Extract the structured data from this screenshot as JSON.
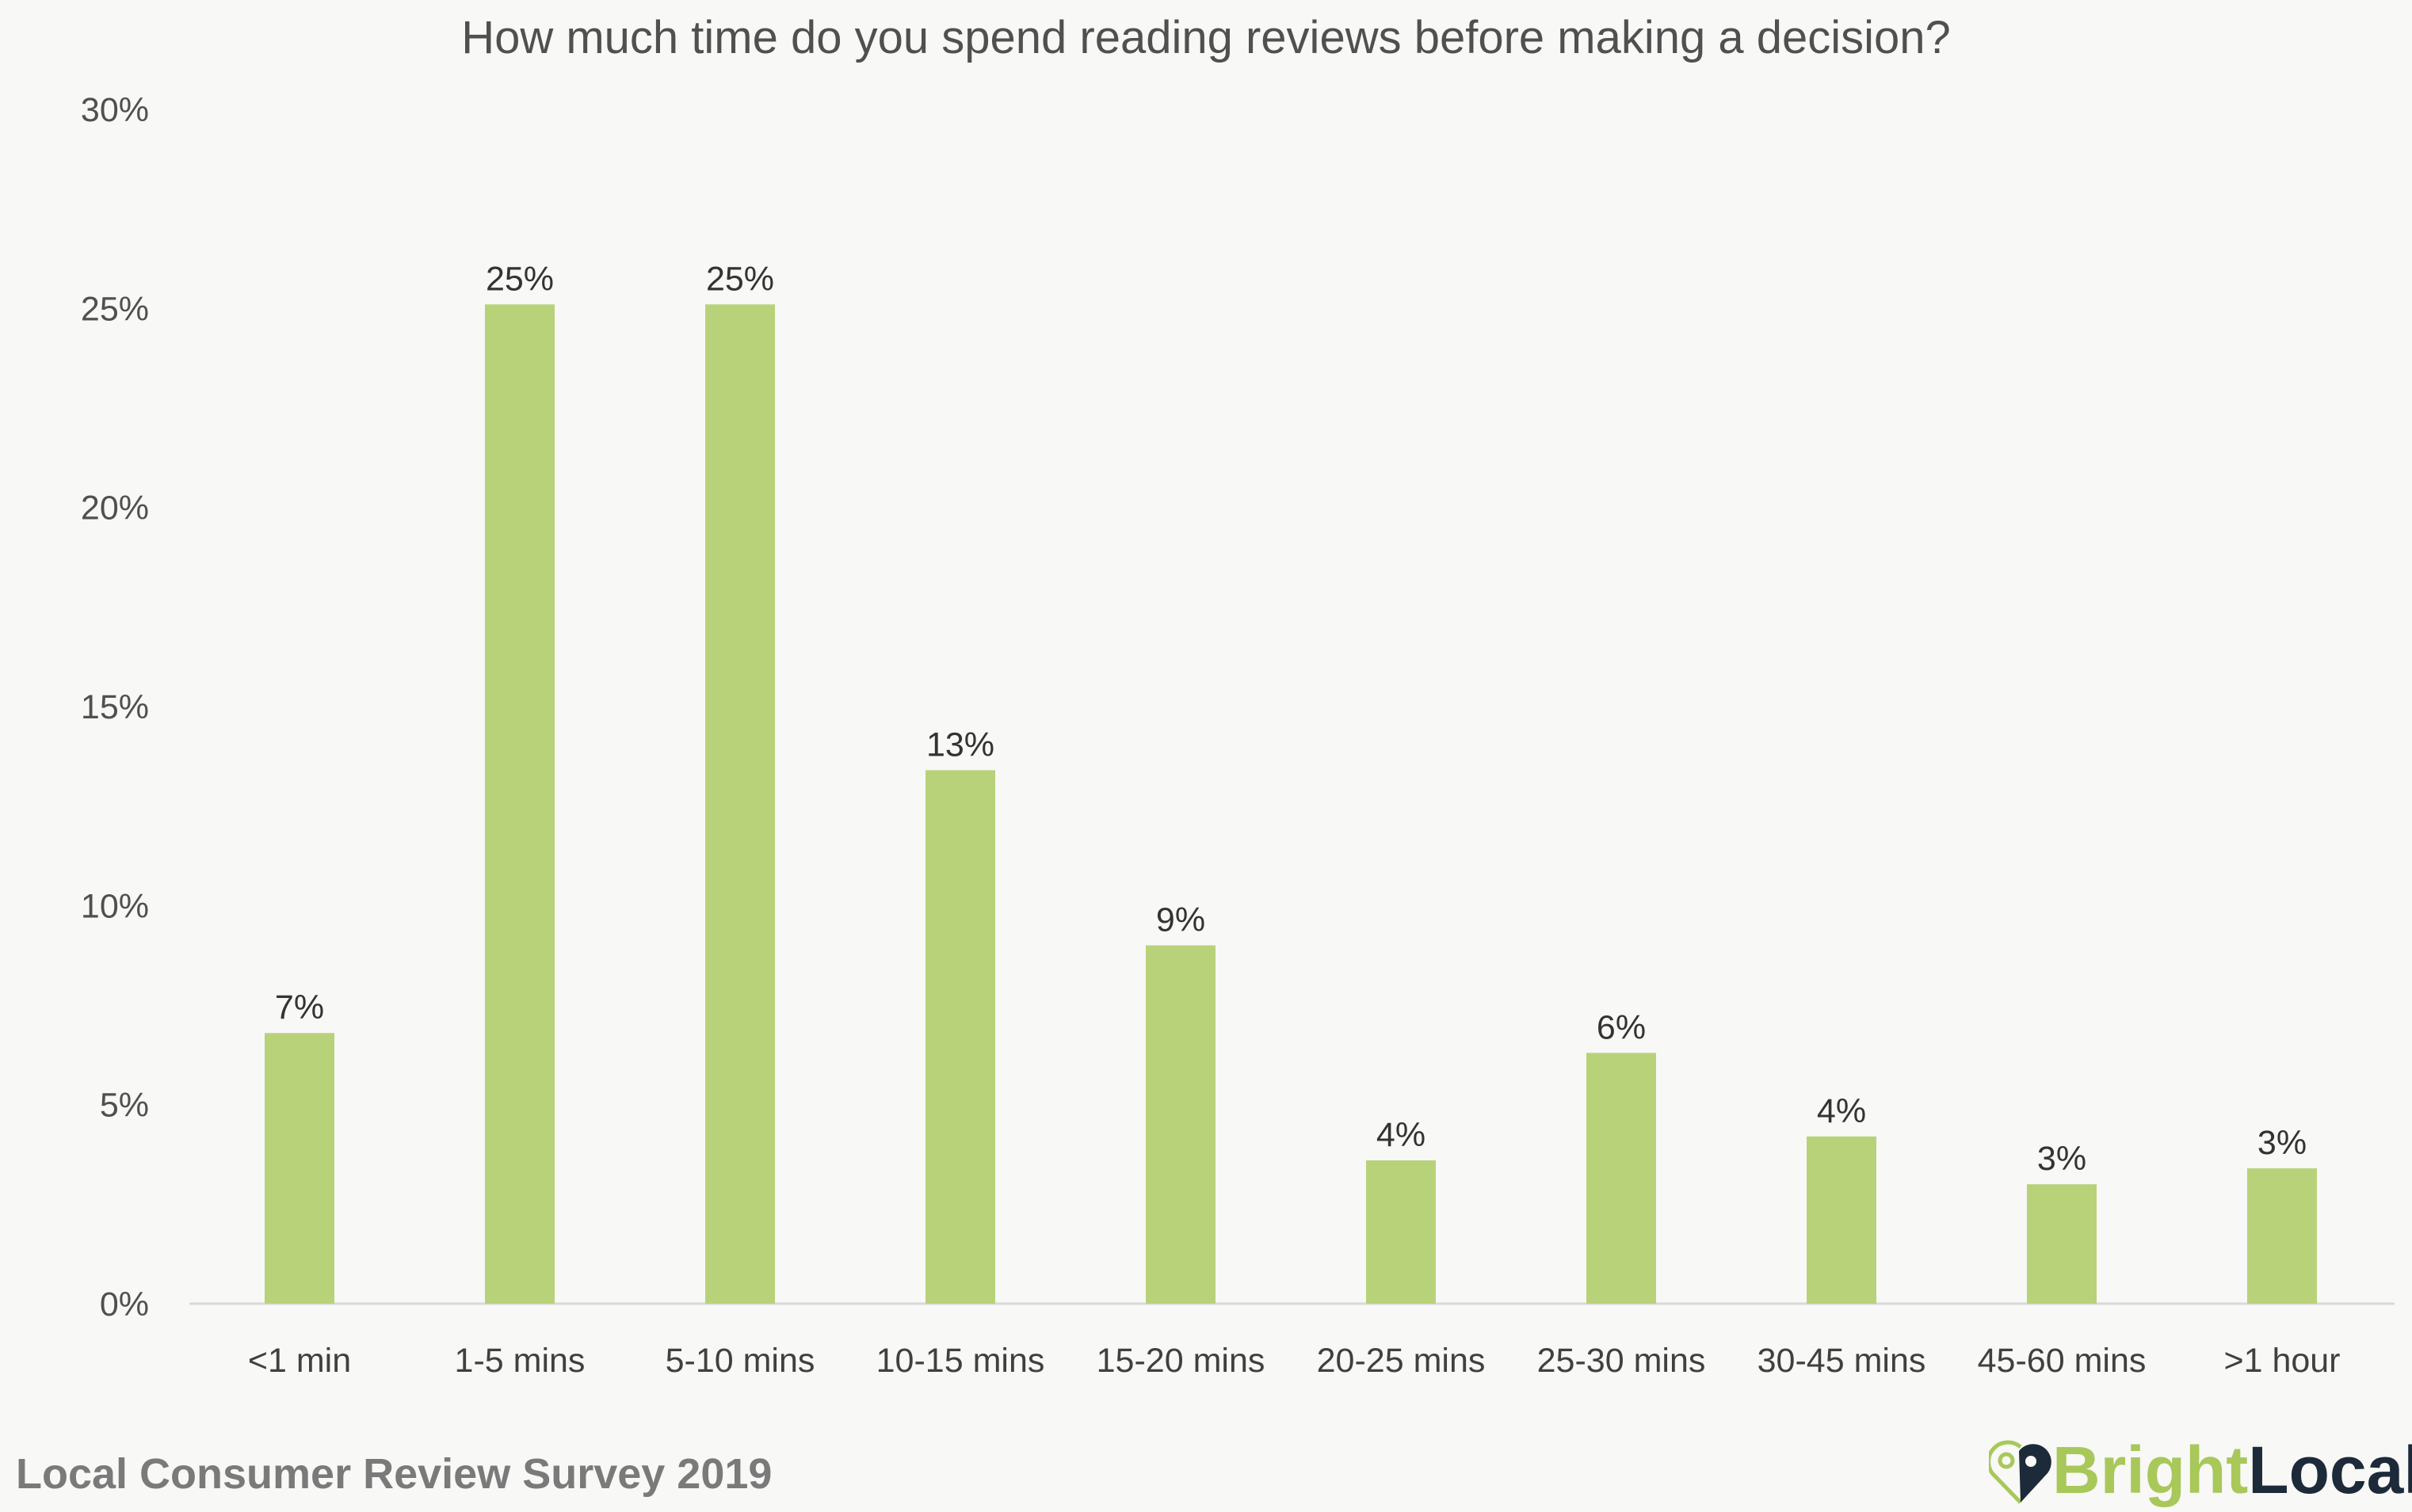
{
  "chart_data": {
    "type": "bar",
    "title": "How much time do you spend reading reviews before making a decision?",
    "categories": [
      "<1 min",
      "1-5 mins",
      "5-10 mins",
      "10-15 mins",
      "15-20 mins",
      "20-25 mins",
      "25-30 mins",
      "30-45 mins",
      "45-60 mins",
      ">1 hour"
    ],
    "values": [
      6.8,
      25.1,
      25.1,
      13.4,
      9.0,
      3.6,
      6.3,
      4.2,
      3.0,
      3.4
    ],
    "data_labels": [
      "7%",
      "25%",
      "25%",
      "13%",
      "9%",
      "4%",
      "6%",
      "4%",
      "3%",
      "3%"
    ],
    "yticks": [
      "0%",
      "5%",
      "10%",
      "15%",
      "20%",
      "25%",
      "30%"
    ],
    "ylim": [
      0,
      30
    ],
    "xlabel": "",
    "ylabel": "",
    "grid": false,
    "legend": "none",
    "bar_color": "#b8d27a"
  },
  "footer": "Local Consumer Review Survey 2019",
  "logo": {
    "part1": "Bright",
    "part2": "Local"
  }
}
